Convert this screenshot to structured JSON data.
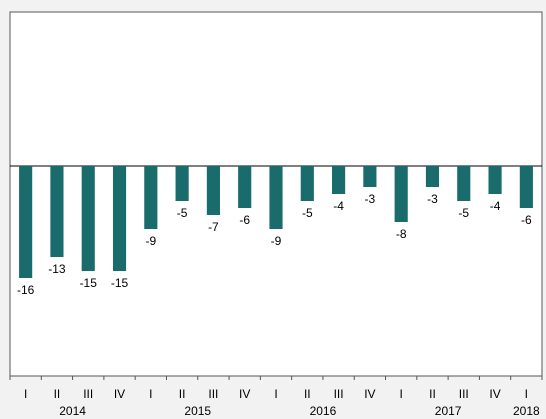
{
  "chart_data": {
    "type": "bar",
    "categories": [
      "I",
      "II",
      "III",
      "IV",
      "I",
      "II",
      "III",
      "IV",
      "I",
      "II",
      "III",
      "IV",
      "I",
      "II",
      "III",
      "IV",
      "I"
    ],
    "years": [
      {
        "label": "2014",
        "start": 0,
        "end": 3
      },
      {
        "label": "2015",
        "start": 4,
        "end": 7
      },
      {
        "label": "2016",
        "start": 8,
        "end": 11
      },
      {
        "label": "2017",
        "start": 12,
        "end": 15
      },
      {
        "label": "2018",
        "start": 16,
        "end": 16
      }
    ],
    "values": [
      -16,
      -13,
      -15,
      -15,
      -9,
      -5,
      -7,
      -6,
      -9,
      -5,
      -4,
      -3,
      -8,
      -3,
      -5,
      -4,
      -6
    ],
    "data_labels": [
      "-16",
      "-13",
      "-15",
      "-15",
      "-9",
      "-5",
      "-7",
      "-6",
      "-9",
      "-5",
      "-4",
      "-3",
      "-8",
      "-3",
      "-5",
      "-4",
      "-6"
    ],
    "title": "",
    "xlabel": "",
    "ylabel": "",
    "ylim": [
      -30,
      22
    ],
    "grid": false,
    "legend": "none",
    "bar_color": "#1a6b6b",
    "background": "#ffffff"
  }
}
